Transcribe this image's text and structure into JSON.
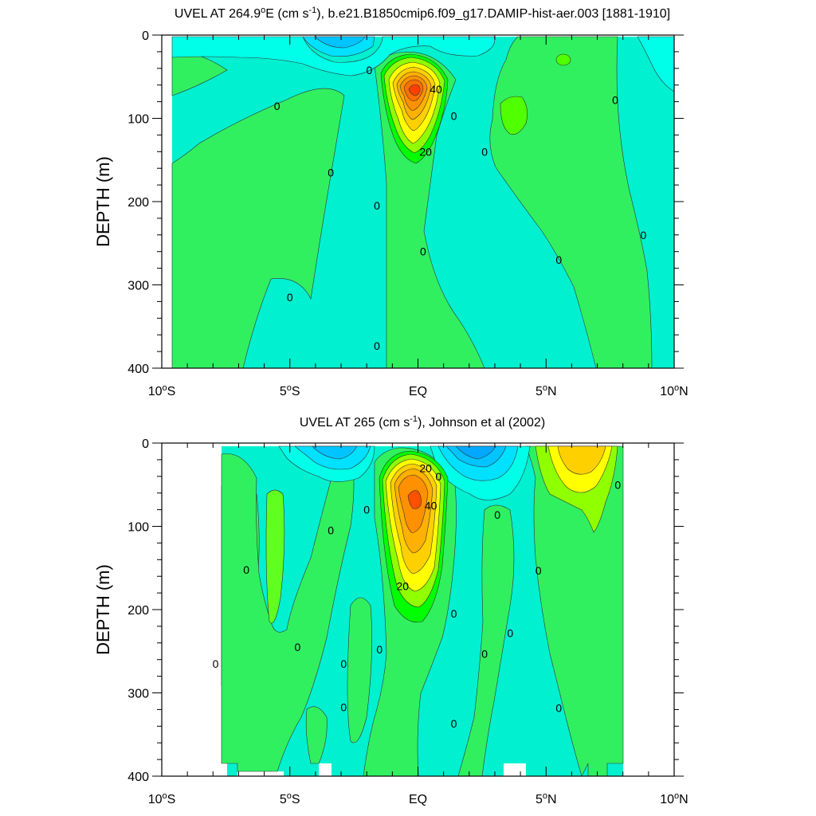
{
  "chart_data": [
    {
      "type": "contour",
      "title_main": "UVEL AT 264.9",
      "title_deg": "o",
      "title_after_deg": "E (cm s",
      "title_sup": "-1",
      "title_tail": "), b.e21.B1850cmip6.f09_g17.DAMIP-hist-aer.003 [1881-1910]",
      "xlabel": "",
      "ylabel": "DEPTH (m)",
      "xlim": [
        -10,
        10
      ],
      "ylim": [
        400,
        0
      ],
      "x_ticks": [
        {
          "main": "10",
          "deg": "o",
          "hemi": "S"
        },
        {
          "main": "5",
          "deg": "o",
          "hemi": "S"
        },
        {
          "main": "EQ",
          "deg": "",
          "hemi": ""
        },
        {
          "main": "5",
          "deg": "o",
          "hemi": "N"
        },
        {
          "main": "10",
          "deg": "o",
          "hemi": "N"
        }
      ],
      "x_tick_values": [
        -10,
        -5,
        0,
        5,
        10
      ],
      "y_ticks": [
        "0",
        "100",
        "200",
        "300",
        "400"
      ],
      "y_tick_values": [
        0,
        100,
        200,
        300,
        400
      ],
      "contour_labels": [
        {
          "text": "40",
          "x": 0.7,
          "y": 65
        },
        {
          "text": "20",
          "x": 0.3,
          "y": 140
        },
        {
          "text": "0",
          "x": -1.9,
          "y": 42
        },
        {
          "text": "0",
          "x": -5.5,
          "y": 85
        },
        {
          "text": "0",
          "x": 1.4,
          "y": 97
        },
        {
          "text": "0",
          "x": -3.4,
          "y": 165
        },
        {
          "text": "0",
          "x": 2.6,
          "y": 140
        },
        {
          "text": "0",
          "x": -1.6,
          "y": 205
        },
        {
          "text": "0",
          "x": 0.2,
          "y": 260
        },
        {
          "text": "0",
          "x": 5.5,
          "y": 270
        },
        {
          "text": "0",
          "x": 7.7,
          "y": 78
        },
        {
          "text": "0",
          "x": 8.8,
          "y": 240
        },
        {
          "text": "0",
          "x": -5.0,
          "y": 315
        },
        {
          "text": "0",
          "x": -1.6,
          "y": 373
        }
      ]
    },
    {
      "type": "contour",
      "title_main": "UVEL AT 265 (cm s",
      "title_sup": "-1",
      "title_tail": "), Johnson et al (2002)",
      "xlabel": "",
      "ylabel": "DEPTH (m)",
      "xlim": [
        -10,
        10
      ],
      "ylim": [
        400,
        0
      ],
      "x_ticks": [
        {
          "main": "10",
          "deg": "o",
          "hemi": "S"
        },
        {
          "main": "5",
          "deg": "o",
          "hemi": "S"
        },
        {
          "main": "EQ",
          "deg": "",
          "hemi": ""
        },
        {
          "main": "5",
          "deg": "o",
          "hemi": "N"
        },
        {
          "main": "10",
          "deg": "o",
          "hemi": "N"
        }
      ],
      "x_tick_values": [
        -10,
        -5,
        0,
        5,
        10
      ],
      "y_ticks": [
        "0",
        "100",
        "200",
        "300",
        "400"
      ],
      "y_tick_values": [
        0,
        100,
        200,
        300,
        400
      ],
      "contour_labels": [
        {
          "text": "20",
          "x": 0.3,
          "y": 30
        },
        {
          "text": "40",
          "x": 0.5,
          "y": 75
        },
        {
          "text": "20",
          "x": -0.6,
          "y": 172
        },
        {
          "text": "0",
          "x": 0.8,
          "y": 40
        },
        {
          "text": "0",
          "x": -2.0,
          "y": 80
        },
        {
          "text": "0",
          "x": -3.4,
          "y": 105
        },
        {
          "text": "0",
          "x": 3.1,
          "y": 86
        },
        {
          "text": "0",
          "x": -6.7,
          "y": 152
        },
        {
          "text": "0",
          "x": 4.7,
          "y": 153
        },
        {
          "text": "0",
          "x": 1.4,
          "y": 205
        },
        {
          "text": "0",
          "x": 3.6,
          "y": 228
        },
        {
          "text": "0",
          "x": -7.9,
          "y": 265
        },
        {
          "text": "0",
          "x": -4.7,
          "y": 245
        },
        {
          "text": "0",
          "x": -2.9,
          "y": 265
        },
        {
          "text": "0",
          "x": -1.5,
          "y": 248
        },
        {
          "text": "0",
          "x": 2.6,
          "y": 253
        },
        {
          "text": "0",
          "x": 7.8,
          "y": 50
        },
        {
          "text": "0",
          "x": -2.9,
          "y": 317
        },
        {
          "text": "0",
          "x": 1.4,
          "y": 337
        },
        {
          "text": "0",
          "x": 5.5,
          "y": 318
        }
      ]
    }
  ]
}
